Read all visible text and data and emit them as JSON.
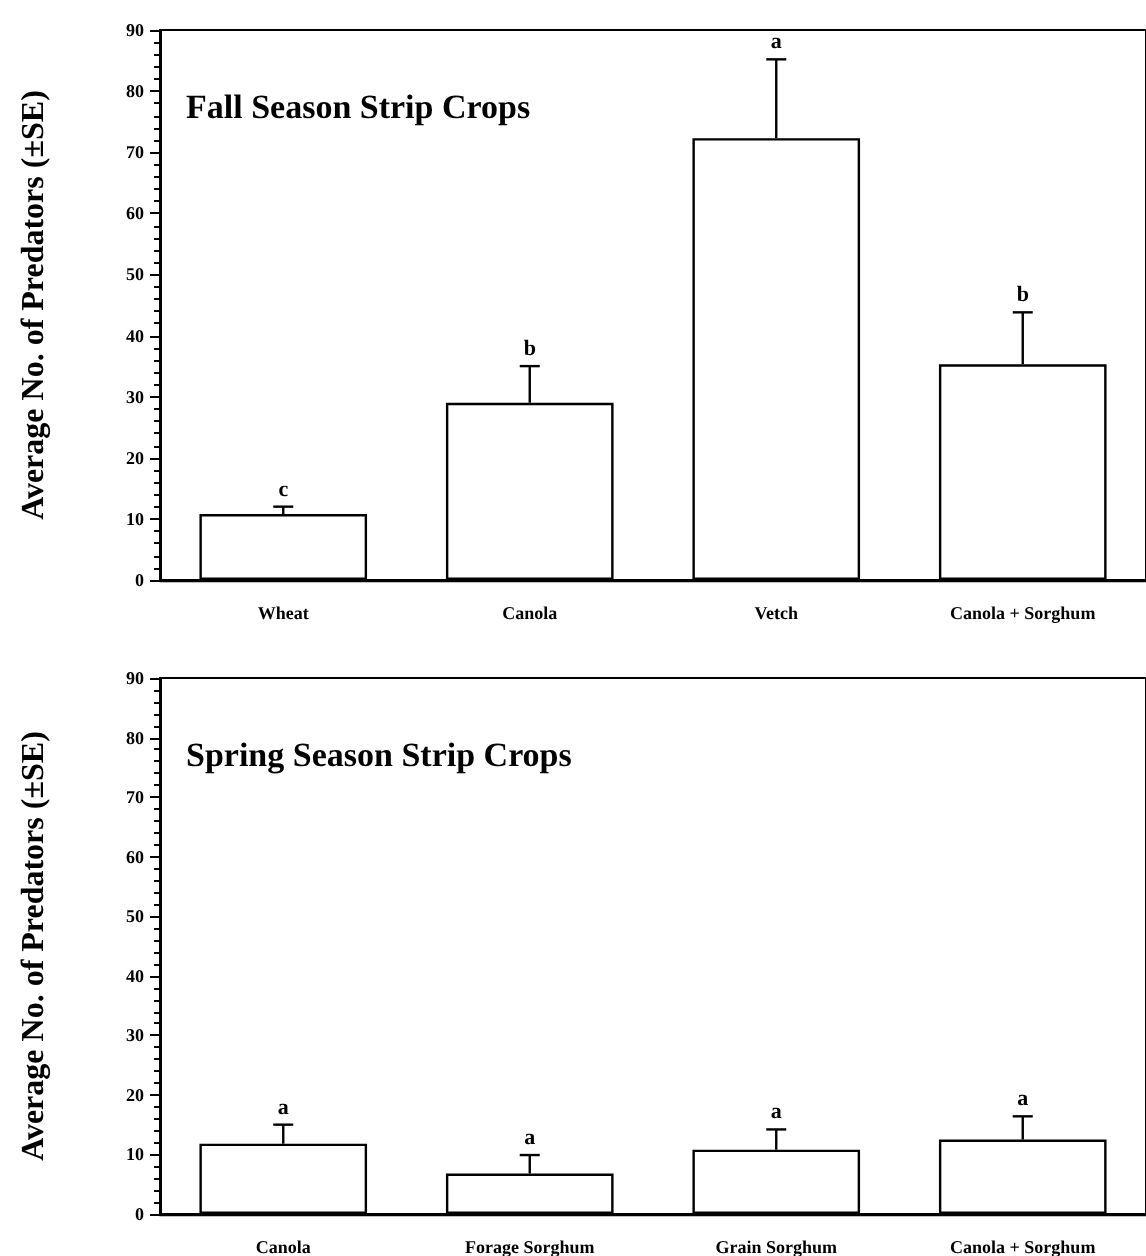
{
  "chart_data": [
    {
      "type": "bar",
      "title": "Fall Season Strip Crops",
      "ylabel": "Average No. of Predators (±SE)",
      "categories": [
        "Wheat",
        "Canola",
        "Vetch",
        "Canola + Sorghum"
      ],
      "color": "#ffffff",
      "values": [
        10.8,
        29,
        72.3,
        35.3
      ],
      "errors": [
        [
          10.8,
          12
        ],
        [
          29,
          35
        ],
        [
          72.3,
          85.2
        ],
        [
          35.3,
          43.8
        ]
      ],
      "ylim": [
        0,
        90
      ],
      "yticks": [
        0,
        10,
        20,
        30,
        40,
        50,
        60,
        70,
        80,
        90
      ],
      "grid": false,
      "annotations": [
        {
          "text": "c",
          "x": "Wheat",
          "y": 12
        },
        {
          "text": "b",
          "x": "Canola",
          "y": 35
        },
        {
          "text": "a",
          "x": "Vetch",
          "y": 85.2
        },
        {
          "text": "b",
          "x": "Canola + Sorghum",
          "y": 43.8
        }
      ]
    },
    {
      "type": "bar",
      "title": "Spring Season Strip Crops",
      "ylabel": "Average No. of Predators (±SE)",
      "categories": [
        "Canola",
        "Forage Sorghum",
        "Grain Sorghum",
        "Canola + Sorghum"
      ],
      "color": "#ffffff",
      "values": [
        11.8,
        6.8,
        10.8,
        12.5
      ],
      "errors": [
        [
          11.8,
          15
        ],
        [
          6.8,
          9.9
        ],
        [
          10.8,
          14.2
        ],
        [
          12.5,
          16.4
        ]
      ],
      "ylim": [
        0,
        90
      ],
      "yticks": [
        0,
        10,
        20,
        30,
        40,
        50,
        60,
        70,
        80,
        90
      ],
      "grid": false,
      "annotations": [
        {
          "text": "a",
          "x": "Canola",
          "y": 15
        },
        {
          "text": "a",
          "x": "Forage Sorghum",
          "y": 9.9
        },
        {
          "text": "a",
          "x": "Grain Sorghum",
          "y": 14.2
        },
        {
          "text": "a",
          "x": "Canola + Sorghum",
          "y": 16.4
        }
      ]
    }
  ]
}
